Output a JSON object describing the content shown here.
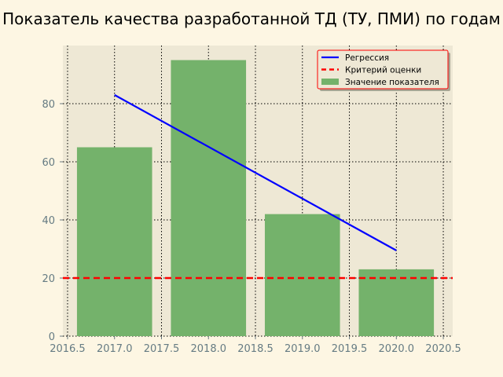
{
  "chart_data": {
    "type": "bar",
    "title": "Показатель качества разработанной ТД (ТУ, ПМИ) по годам",
    "xlabel": "",
    "ylabel": "",
    "xlim": [
      2016.45,
      2020.6
    ],
    "ylim": [
      0,
      100
    ],
    "xticks": [
      2016.5,
      2017.0,
      2017.5,
      2018.0,
      2018.5,
      2019.0,
      2019.5,
      2020.0,
      2020.5
    ],
    "xtick_labels": [
      "2016.5",
      "2017.0",
      "2017.5",
      "2018.0",
      "2018.5",
      "2019.0",
      "2019.5",
      "2020.0",
      "2020.5"
    ],
    "yticks": [
      0,
      20,
      40,
      60,
      80
    ],
    "ytick_labels": [
      "0",
      "20",
      "40",
      "60",
      "80"
    ],
    "grid": true,
    "legend_position": "top-right",
    "categories": [
      2017,
      2018,
      2019,
      2020
    ],
    "series": [
      {
        "name": "Значение показателя",
        "type": "bar",
        "x": [
          2017,
          2018,
          2019,
          2020
        ],
        "values": [
          65,
          95,
          42,
          23
        ],
        "bar_width": 0.8,
        "color": "#74b26b"
      },
      {
        "name": "Регрессия",
        "type": "line",
        "x": [
          2017,
          2020
        ],
        "values": [
          83,
          29.5
        ],
        "color": "#0000ff"
      },
      {
        "name": "Критерий оценки",
        "type": "hline",
        "y": 20,
        "color": "#ff0000",
        "style": "dashed"
      }
    ],
    "legend": [
      "Регрессия",
      "Критерий оценки",
      "Значение показателя"
    ]
  }
}
